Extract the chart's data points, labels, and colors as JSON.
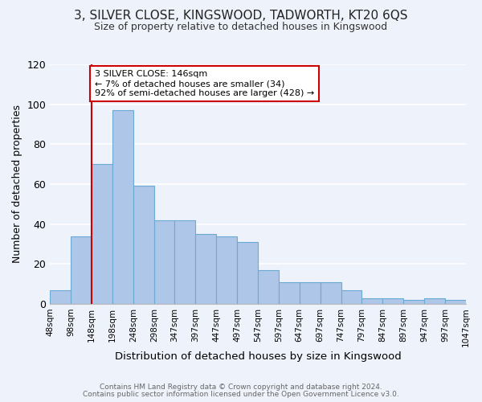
{
  "title": "3, SILVER CLOSE, KINGSWOOD, TADWORTH, KT20 6QS",
  "subtitle": "Size of property relative to detached houses in Kingswood",
  "xlabel": "Distribution of detached houses by size in Kingswood",
  "ylabel": "Number of detached properties",
  "bin_edges": [
    48,
    98,
    148,
    198,
    248,
    298,
    347,
    397,
    447,
    497,
    547,
    597,
    647,
    697,
    747,
    797,
    847,
    897,
    947,
    997,
    1047
  ],
  "bar_heights": [
    7,
    34,
    70,
    97,
    59,
    42,
    42,
    35,
    34,
    31,
    17,
    11,
    11,
    11,
    7,
    3,
    3,
    2,
    3,
    2
  ],
  "bar_color": "#aec6e8",
  "bar_edge_color": "#6aaad4",
  "vline_x": 148,
  "vline_color": "#cc0000",
  "ylim": [
    0,
    120
  ],
  "yticks": [
    0,
    20,
    40,
    60,
    80,
    100,
    120
  ],
  "annotation_title": "3 SILVER CLOSE: 146sqm",
  "annotation_line1": "← 7% of detached houses are smaller (34)",
  "annotation_line2": "92% of semi-detached houses are larger (428) →",
  "annotation_box_color": "#ffffff",
  "annotation_box_edge": "#cc0000",
  "footer_line1": "Contains HM Land Registry data © Crown copyright and database right 2024.",
  "footer_line2": "Contains public sector information licensed under the Open Government Licence v3.0.",
  "background_color": "#eef2fa",
  "plot_background": "#eef2fa",
  "grid_color": "#ffffff"
}
